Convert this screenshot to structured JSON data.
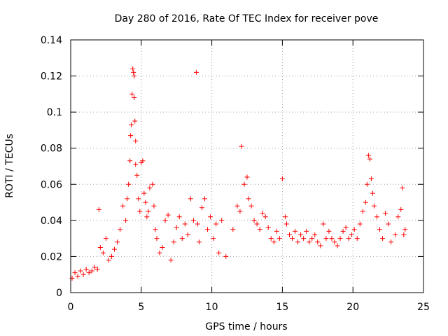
{
  "chart_data": {
    "type": "scatter",
    "title": "Day 280 of 2016, Rate Of TEC Index for receiver pove",
    "xlabel": "GPS time / hours",
    "ylabel": "ROTI / TECUs",
    "xlim": [
      0,
      25
    ],
    "ylim": [
      0,
      0.14
    ],
    "xticks": [
      0,
      5,
      10,
      15,
      20,
      25
    ],
    "xtick_labels": [
      "0",
      "5",
      "10",
      "15",
      "20",
      "25"
    ],
    "yticks": [
      0,
      0.02,
      0.04,
      0.06,
      0.08,
      0.1,
      0.12,
      0.14
    ],
    "ytick_labels": [
      "0",
      "0.02",
      "0.04",
      "0.06",
      "0.08",
      "0.1",
      "0.12",
      "0.14"
    ],
    "grid": true,
    "marker": "plus",
    "color": "#ff0000",
    "series": [
      {
        "name": "ROTI",
        "x": [
          0.1,
          0.3,
          0.5,
          0.7,
          0.9,
          1.1,
          1.3,
          1.5,
          1.7,
          1.9,
          2.0,
          2.1,
          2.3,
          2.5,
          2.7,
          2.9,
          3.1,
          3.3,
          3.5,
          3.7,
          3.9,
          4.0,
          4.1,
          4.2,
          4.25,
          4.3,
          4.35,
          4.4,
          4.45,
          4.5,
          4.5,
          4.55,
          4.6,
          4.6,
          4.7,
          4.8,
          4.9,
          5.0,
          5.1,
          5.2,
          5.3,
          5.4,
          5.5,
          5.6,
          5.8,
          5.9,
          6.0,
          6.1,
          6.3,
          6.5,
          6.7,
          6.9,
          7.1,
          7.3,
          7.5,
          7.7,
          7.9,
          8.1,
          8.3,
          8.5,
          8.7,
          8.9,
          9.0,
          9.1,
          9.3,
          9.5,
          9.7,
          9.9,
          10.1,
          10.3,
          10.5,
          10.7,
          11.0,
          11.5,
          11.8,
          12.0,
          12.1,
          12.3,
          12.5,
          12.6,
          12.8,
          13.0,
          13.2,
          13.4,
          13.6,
          13.8,
          14.0,
          14.2,
          14.4,
          14.6,
          14.8,
          15.0,
          15.2,
          15.3,
          15.5,
          15.7,
          15.9,
          16.1,
          16.3,
          16.5,
          16.7,
          16.9,
          17.1,
          17.3,
          17.5,
          17.7,
          17.9,
          18.1,
          18.3,
          18.5,
          18.7,
          18.9,
          19.1,
          19.3,
          19.5,
          19.7,
          19.9,
          20.1,
          20.3,
          20.5,
          20.7,
          20.9,
          21.0,
          21.1,
          21.2,
          21.3,
          21.4,
          21.5,
          21.7,
          21.9,
          22.1,
          22.3,
          22.5,
          22.7,
          23.0,
          23.2,
          23.4,
          23.5,
          23.6,
          23.7
        ],
        "y": [
          0.008,
          0.011,
          0.009,
          0.012,
          0.01,
          0.013,
          0.011,
          0.012,
          0.014,
          0.013,
          0.046,
          0.025,
          0.022,
          0.03,
          0.018,
          0.02,
          0.024,
          0.028,
          0.035,
          0.048,
          0.04,
          0.052,
          0.06,
          0.073,
          0.087,
          0.093,
          0.11,
          0.124,
          0.122,
          0.12,
          0.108,
          0.095,
          0.084,
          0.071,
          0.065,
          0.052,
          0.045,
          0.072,
          0.073,
          0.055,
          0.05,
          0.042,
          0.045,
          0.058,
          0.06,
          0.048,
          0.035,
          0.03,
          0.022,
          0.025,
          0.04,
          0.043,
          0.018,
          0.028,
          0.036,
          0.042,
          0.03,
          0.038,
          0.032,
          0.052,
          0.04,
          0.122,
          0.038,
          0.028,
          0.047,
          0.052,
          0.035,
          0.042,
          0.03,
          0.038,
          0.022,
          0.04,
          0.02,
          0.035,
          0.048,
          0.045,
          0.081,
          0.06,
          0.064,
          0.052,
          0.048,
          0.04,
          0.038,
          0.035,
          0.044,
          0.042,
          0.036,
          0.03,
          0.028,
          0.034,
          0.03,
          0.063,
          0.042,
          0.038,
          0.032,
          0.03,
          0.034,
          0.028,
          0.032,
          0.03,
          0.034,
          0.028,
          0.03,
          0.032,
          0.028,
          0.026,
          0.038,
          0.03,
          0.034,
          0.03,
          0.028,
          0.026,
          0.03,
          0.034,
          0.036,
          0.03,
          0.032,
          0.035,
          0.03,
          0.038,
          0.045,
          0.05,
          0.06,
          0.076,
          0.074,
          0.063,
          0.055,
          0.048,
          0.042,
          0.035,
          0.03,
          0.044,
          0.038,
          0.028,
          0.032,
          0.042,
          0.046,
          0.058,
          0.032,
          0.035
        ]
      }
    ]
  }
}
